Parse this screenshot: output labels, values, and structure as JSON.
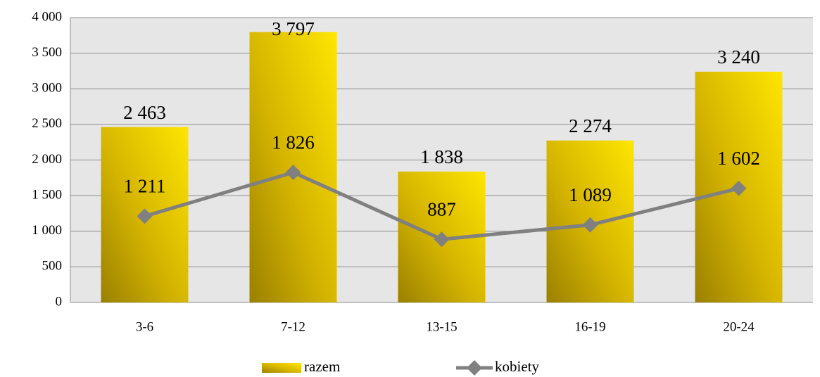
{
  "chart_data": {
    "type": "bar",
    "categories": [
      "3-6",
      "7-12",
      "13-15",
      "16-19",
      "20-24"
    ],
    "series": [
      {
        "name": "razem",
        "type": "bar",
        "color": "#ffe600",
        "values": [
          2463,
          3797,
          1838,
          2274,
          3240
        ],
        "value_labels": [
          "2 463",
          "3 797",
          "1 838",
          "2 274",
          "3 240"
        ]
      },
      {
        "name": "kobiety",
        "type": "line",
        "color": "#808080",
        "values": [
          1211,
          1826,
          887,
          1089,
          1602
        ],
        "value_labels": [
          "1 211",
          "1 826",
          "887",
          "1 089",
          "1 602"
        ]
      }
    ],
    "ylim": [
      0,
      4000
    ],
    "yticks": [
      0,
      500,
      {
        "value": 1000,
        "label": "1 000"
      },
      {
        "value": 1500,
        "label": "1 500"
      },
      {
        "value": 2000,
        "label": "2 000"
      },
      {
        "value": 2500,
        "label": "2 500"
      },
      {
        "value": 3000,
        "label": "3 000"
      },
      {
        "value": 3500,
        "label": "3 500"
      },
      {
        "value": 4000,
        "label": "4 000"
      }
    ],
    "grid": true,
    "legend": "bottom"
  }
}
